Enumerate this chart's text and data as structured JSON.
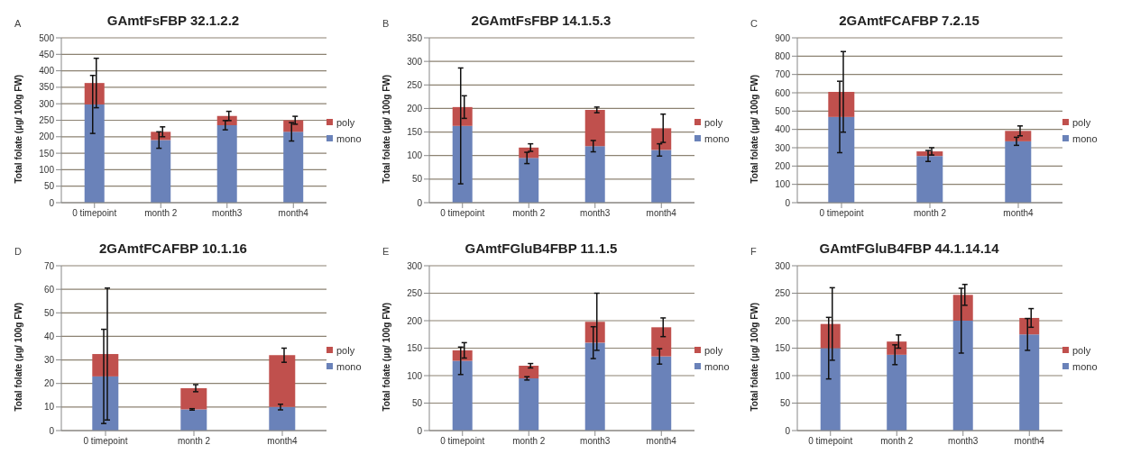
{
  "chart_data": [
    {
      "type": "bar",
      "stacked": true,
      "title": "GAmtFsFBP 32.1.2.2",
      "ylabel": "Total folate (µg/ 100g FW)",
      "annotations": [
        "A"
      ],
      "categories": [
        "0 timepoint",
        "month 2",
        "month3",
        "month4"
      ],
      "ylim": [
        0,
        500
      ],
      "yticks": [
        0,
        50,
        100,
        150,
        200,
        250,
        300,
        350,
        400,
        450,
        500
      ],
      "grid": "y",
      "legend": "right",
      "series": [
        {
          "name": "mono",
          "color": "#6a82b9",
          "values": [
            298,
            190,
            235,
            215
          ],
          "errors": [
            88,
            25,
            14,
            28
          ]
        },
        {
          "name": "poly",
          "color": "#c0504d",
          "values": [
            65,
            25,
            28,
            35
          ],
          "errors": [
            75,
            15,
            14,
            12
          ]
        }
      ]
    },
    {
      "type": "bar",
      "stacked": true,
      "title": "2GAmtFsFBP 14.1.5.3",
      "ylabel": "Total folate (µg/ 100g FW)",
      "annotations": [
        "B"
      ],
      "categories": [
        "0 timepoint",
        "month 2",
        "month3",
        "month4"
      ],
      "ylim": [
        0,
        350
      ],
      "yticks": [
        0,
        50,
        100,
        150,
        200,
        250,
        300,
        350
      ],
      "grid": "y",
      "legend": "right",
      "series": [
        {
          "name": "mono",
          "color": "#6a82b9",
          "values": [
            163,
            95,
            120,
            112
          ],
          "errors": [
            123,
            12,
            12,
            13
          ]
        },
        {
          "name": "poly",
          "color": "#c0504d",
          "values": [
            40,
            22,
            77,
            46
          ],
          "errors": [
            24,
            8,
            6,
            30
          ]
        }
      ]
    },
    {
      "type": "bar",
      "stacked": true,
      "title": "2GAmtFCAFBP 7.2.15",
      "ylabel": "Total folate (µg/ 100g FW)",
      "annotations": [
        "C"
      ],
      "categories": [
        "0 timepoint",
        "month 2",
        "month4"
      ],
      "ylim": [
        0,
        900
      ],
      "yticks": [
        0,
        100,
        200,
        300,
        400,
        500,
        600,
        700,
        800,
        900
      ],
      "grid": "y",
      "legend": "right",
      "series": [
        {
          "name": "mono",
          "color": "#6a82b9",
          "values": [
            468,
            255,
            335
          ],
          "errors": [
            195,
            30,
            22
          ]
        },
        {
          "name": "poly",
          "color": "#c0504d",
          "values": [
            137,
            25,
            57
          ],
          "errors": [
            220,
            20,
            27
          ]
        }
      ]
    },
    {
      "type": "bar",
      "stacked": true,
      "title": "2GAmtFCAFBP 10.1.16",
      "ylabel": "Total folate (µg/ 100g FW)",
      "annotations": [
        "D"
      ],
      "categories": [
        "0 timepoint",
        "month 2",
        "month4"
      ],
      "ylim": [
        0,
        70
      ],
      "yticks": [
        0,
        10,
        20,
        30,
        40,
        50,
        60,
        70
      ],
      "grid": "y",
      "legend": "right",
      "series": [
        {
          "name": "mono",
          "color": "#6a82b9",
          "values": [
            23,
            9,
            10
          ],
          "errors": [
            20,
            0.3,
            1.2
          ]
        },
        {
          "name": "poly",
          "color": "#c0504d",
          "values": [
            9.5,
            9,
            22
          ],
          "errors": [
            28,
            1.5,
            3
          ]
        }
      ]
    },
    {
      "type": "bar",
      "stacked": true,
      "title": "GAmtFGluB4FBP 11.1.5",
      "ylabel": "Total folate (µg/ 100g FW)",
      "annotations": [
        "E"
      ],
      "categories": [
        "0 timepoint",
        "month 2",
        "month3",
        "month4"
      ],
      "ylim": [
        0,
        300
      ],
      "yticks": [
        0,
        50,
        100,
        150,
        200,
        250,
        300
      ],
      "grid": "y",
      "legend": "right",
      "series": [
        {
          "name": "mono",
          "color": "#6a82b9",
          "values": [
            127,
            95,
            160,
            135
          ],
          "errors": [
            25,
            3,
            29,
            14
          ]
        },
        {
          "name": "poly",
          "color": "#c0504d",
          "values": [
            19,
            23,
            38,
            53
          ],
          "errors": [
            14,
            4,
            52,
            17
          ]
        }
      ]
    },
    {
      "type": "bar",
      "stacked": true,
      "title": "GAmtFGluB4FBP 44.1.14.14",
      "ylabel": "Total folate (µg/ 100g FW)",
      "annotations": [
        "F"
      ],
      "categories": [
        "0 timepoint",
        "month 2",
        "month3",
        "month4"
      ],
      "ylim": [
        0,
        300
      ],
      "yticks": [
        0,
        50,
        100,
        150,
        200,
        250,
        300
      ],
      "grid": "y",
      "legend": "right",
      "series": [
        {
          "name": "mono",
          "color": "#6a82b9",
          "values": [
            150,
            138,
            200,
            175
          ],
          "errors": [
            56,
            18,
            59,
            29
          ]
        },
        {
          "name": "poly",
          "color": "#c0504d",
          "values": [
            44,
            24,
            47,
            30
          ],
          "errors": [
            66,
            12,
            19,
            17
          ]
        }
      ]
    }
  ]
}
